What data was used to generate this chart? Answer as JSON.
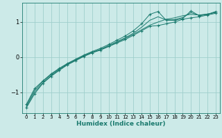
{
  "xlabel": "Humidex (Indice chaleur)",
  "ylabel": "",
  "bg_color": "#cceae8",
  "grid_color": "#9fcfcc",
  "line_color": "#1a7a6e",
  "xlim": [
    -0.5,
    23.5
  ],
  "ylim": [
    -1.6,
    1.55
  ],
  "xticks": [
    0,
    1,
    2,
    3,
    4,
    5,
    6,
    7,
    8,
    9,
    10,
    11,
    12,
    13,
    14,
    15,
    16,
    17,
    18,
    19,
    20,
    21,
    22,
    23
  ],
  "yticks": [
    -1,
    0,
    1
  ],
  "series": [
    {
      "x": [
        0,
        1,
        2,
        3,
        4,
        5,
        6,
        7,
        8,
        9,
        10,
        11,
        12,
        13,
        14,
        15,
        16,
        17,
        18,
        19,
        20,
        21,
        22,
        23
      ],
      "y": [
        -1.45,
        -1.05,
        -0.75,
        -0.55,
        -0.38,
        -0.22,
        -0.1,
        0.02,
        0.12,
        0.2,
        0.3,
        0.4,
        0.5,
        0.62,
        0.75,
        0.88,
        0.9,
        0.95,
        1.0,
        1.08,
        1.12,
        1.15,
        1.2,
        1.25
      ],
      "marker": true
    },
    {
      "x": [
        0,
        1,
        2,
        3,
        4,
        5,
        6,
        7,
        8,
        9,
        10,
        11,
        12,
        13,
        14,
        15,
        16,
        17,
        18,
        19,
        20,
        21,
        22,
        23
      ],
      "y": [
        -1.35,
        -0.9,
        -0.68,
        -0.48,
        -0.32,
        -0.18,
        -0.06,
        0.06,
        0.16,
        0.25,
        0.36,
        0.48,
        0.6,
        0.75,
        0.95,
        1.22,
        1.3,
        1.05,
        1.05,
        1.1,
        1.32,
        1.18,
        1.22,
        1.3
      ],
      "marker": true
    },
    {
      "x": [
        0,
        1,
        2,
        3,
        4,
        5,
        6,
        7,
        8,
        9,
        10,
        11,
        12,
        13,
        14,
        15,
        16,
        17,
        18,
        19,
        20,
        21,
        22,
        23
      ],
      "y": [
        -1.42,
        -1.0,
        -0.74,
        -0.53,
        -0.36,
        -0.21,
        -0.09,
        0.03,
        0.13,
        0.21,
        0.31,
        0.42,
        0.53,
        0.65,
        0.78,
        0.91,
        1.0,
        1.08,
        1.12,
        1.18,
        1.22,
        1.2,
        1.23,
        1.27
      ],
      "marker": false
    },
    {
      "x": [
        0,
        1,
        2,
        3,
        4,
        5,
        6,
        7,
        8,
        9,
        10,
        11,
        12,
        13,
        14,
        15,
        16,
        17,
        18,
        19,
        20,
        21,
        22,
        23
      ],
      "y": [
        -1.38,
        -0.95,
        -0.7,
        -0.5,
        -0.34,
        -0.19,
        -0.07,
        0.04,
        0.14,
        0.22,
        0.33,
        0.44,
        0.55,
        0.68,
        0.85,
        1.05,
        1.15,
        1.06,
        1.07,
        1.13,
        1.27,
        1.19,
        1.22,
        1.28
      ],
      "marker": false
    }
  ]
}
